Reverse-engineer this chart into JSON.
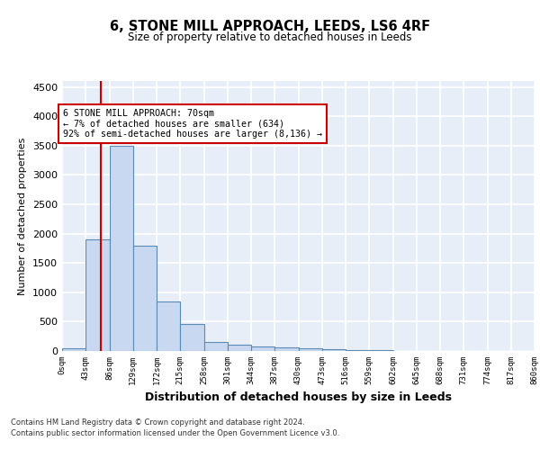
{
  "title": "6, STONE MILL APPROACH, LEEDS, LS6 4RF",
  "subtitle": "Size of property relative to detached houses in Leeds",
  "xlabel": "Distribution of detached houses by size in Leeds",
  "ylabel": "Number of detached properties",
  "bin_edges": [
    0,
    43,
    86,
    129,
    172,
    215,
    258,
    301,
    344,
    387,
    430,
    473,
    516,
    559,
    602,
    645,
    688,
    731,
    774,
    817,
    860
  ],
  "bar_heights": [
    50,
    1900,
    3500,
    1800,
    850,
    460,
    160,
    100,
    70,
    55,
    40,
    25,
    10,
    8,
    6,
    5,
    4,
    3,
    2,
    2
  ],
  "bar_color": "#c8d8f0",
  "bar_edgecolor": "#5b8ab5",
  "bar_linewidth": 0.8,
  "vline_x": 70,
  "vline_color": "#cc0000",
  "vline_linewidth": 1.5,
  "annotation_text": "6 STONE MILL APPROACH: 70sqm\n← 7% of detached houses are smaller (634)\n92% of semi-detached houses are larger (8,136) →",
  "annotation_box_color": "#cc0000",
  "ylim": [
    0,
    4600
  ],
  "yticks": [
    0,
    500,
    1000,
    1500,
    2000,
    2500,
    3000,
    3500,
    4000,
    4500
  ],
  "tick_labels": [
    "0sqm",
    "43sqm",
    "86sqm",
    "129sqm",
    "172sqm",
    "215sqm",
    "258sqm",
    "301sqm",
    "344sqm",
    "387sqm",
    "430sqm",
    "473sqm",
    "516sqm",
    "559sqm",
    "602sqm",
    "645sqm",
    "688sqm",
    "731sqm",
    "774sqm",
    "817sqm",
    "860sqm"
  ],
  "footer_line1": "Contains HM Land Registry data © Crown copyright and database right 2024.",
  "footer_line2": "Contains public sector information licensed under the Open Government Licence v3.0.",
  "background_color": "#e8eef8",
  "grid_color": "#ffffff",
  "fig_bg_color": "#ffffff"
}
